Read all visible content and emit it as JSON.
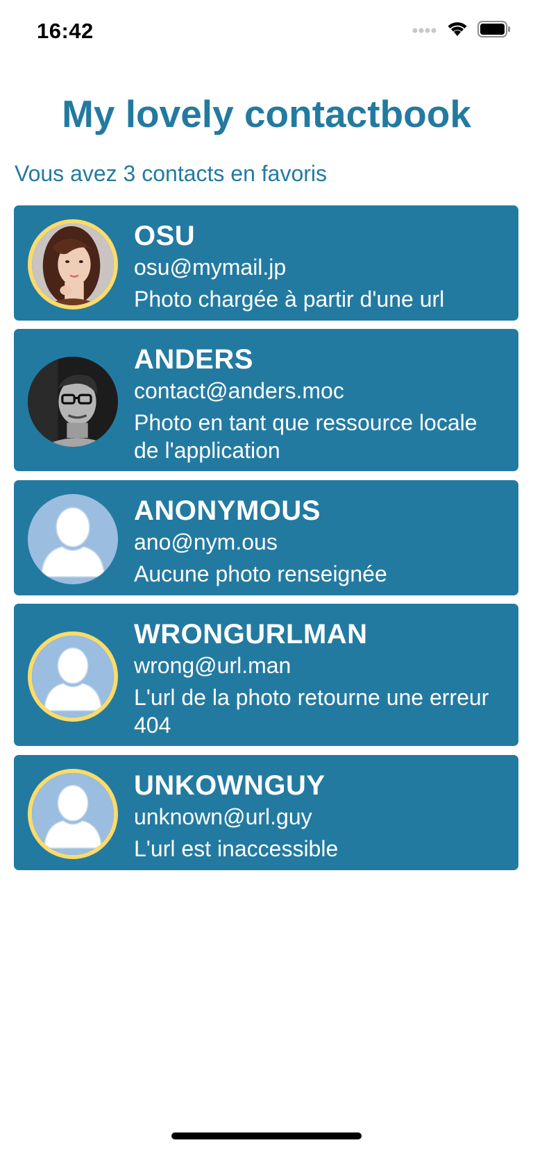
{
  "status_bar": {
    "time": "16:42",
    "icons": [
      "cellular-signal-icon",
      "wifi-icon",
      "battery-icon"
    ]
  },
  "header": {
    "title": "My lovely contactbook",
    "subtitle": "Vous avez 3 contacts en favoris"
  },
  "colors": {
    "primary": "#237aa0",
    "favorite_ring": "#fbdb6a",
    "placeholder_avatar": "#9bbde0"
  },
  "contacts": [
    {
      "name": "OSU",
      "email": "osu@mymail.jp",
      "note": "Photo chargée à partir d'une url",
      "favorite": true,
      "avatar": "photo-woman"
    },
    {
      "name": "ANDERS",
      "email": "contact@anders.moc",
      "note": "Photo en tant que ressource locale de l'application",
      "favorite": false,
      "avatar": "photo-man-bw"
    },
    {
      "name": "ANONYMOUS",
      "email": "ano@nym.ous",
      "note": "Aucune photo renseignée",
      "favorite": false,
      "avatar": "placeholder-user"
    },
    {
      "name": "WRONGURLMAN",
      "email": "wrong@url.man",
      "note": "L'url de la photo retourne une erreur 404",
      "favorite": true,
      "avatar": "placeholder-user"
    },
    {
      "name": "UNKOWNGUY",
      "email": "unknown@url.guy",
      "note": "L'url est inaccessible",
      "favorite": true,
      "avatar": "placeholder-user"
    }
  ]
}
